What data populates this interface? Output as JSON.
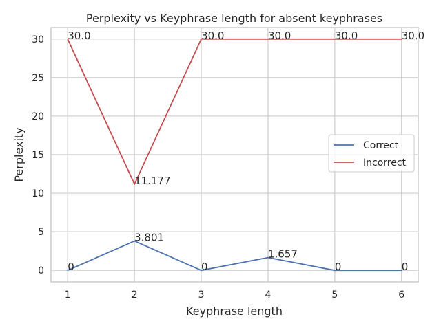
{
  "chart_data": {
    "type": "line",
    "title": "Perplexity vs Keyphrase length for absent keyphrases",
    "xlabel": "Keyphrase length",
    "ylabel": "Perplexity",
    "x": [
      1,
      2,
      3,
      4,
      5,
      6
    ],
    "xlim": [
      0.75,
      6.25
    ],
    "ylim": [
      -1.5,
      31.5
    ],
    "xticks": [
      "1",
      "2",
      "3",
      "4",
      "5",
      "6"
    ],
    "yticks": [
      "0",
      "5",
      "10",
      "15",
      "20",
      "25",
      "30"
    ],
    "grid": true,
    "legend_position": "center-right",
    "series": [
      {
        "name": "Correct",
        "color": "#4c72b0",
        "values": [
          0,
          3.801,
          0,
          1.657,
          0,
          0
        ],
        "labels": [
          "0",
          "3.801",
          "0",
          "1.657",
          "0",
          "0"
        ]
      },
      {
        "name": "Incorrect",
        "color": "#c44e52",
        "values": [
          30.0,
          11.177,
          30.0,
          30.0,
          30.0,
          30.0
        ],
        "labels": [
          "30.0",
          "11.177",
          "30.0",
          "30.0",
          "30.0",
          "30.0"
        ]
      }
    ]
  }
}
